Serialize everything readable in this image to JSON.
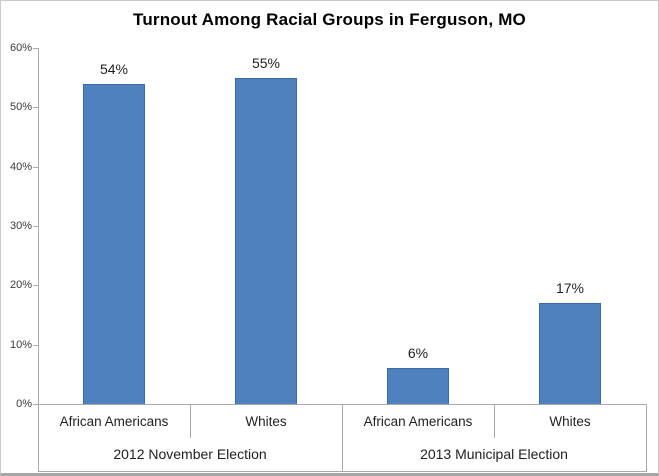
{
  "chart_data": {
    "type": "bar",
    "title": "Turnout Among Racial Groups in Ferguson, MO",
    "xlabel": "",
    "ylabel": "",
    "ylim": [
      0,
      60
    ],
    "ytick_labels": [
      "0%",
      "10%",
      "20%",
      "30%",
      "40%",
      "50%",
      "60%"
    ],
    "grid": false,
    "legend": false,
    "groups": [
      {
        "label": "2012 November Election",
        "categories": [
          "African Americans",
          "Whites"
        ],
        "values": [
          54,
          55
        ],
        "data_labels": [
          "54%",
          "55%"
        ]
      },
      {
        "label": "2013 Municipal Election",
        "categories": [
          "African Americans",
          "Whites"
        ],
        "values": [
          6,
          17
        ],
        "data_labels": [
          "6%",
          "17%"
        ]
      }
    ],
    "colors": {
      "bar_fill": "#4F81BD",
      "bar_border": "#3A6BA6",
      "axis_line": "#A9A9A9",
      "tick_text": "#3A3A3A",
      "label_text": "#1F1F1F",
      "title_text": "#000000"
    }
  }
}
